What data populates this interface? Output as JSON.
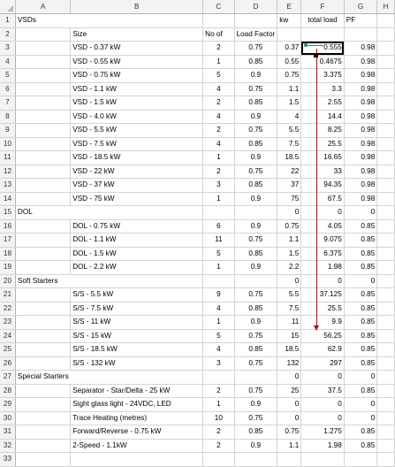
{
  "columns": [
    "A",
    "B",
    "C",
    "D",
    "E",
    "F",
    "G",
    "H"
  ],
  "rows": [
    {
      "n": "1",
      "a": "VSDs",
      "b": "",
      "c": "",
      "d": "",
      "e": "kw",
      "f": "total load",
      "g": "PF"
    },
    {
      "n": "2",
      "a": "",
      "b": "Size",
      "c": "No of",
      "d": "Load Factor",
      "e": "",
      "f": "",
      "g": ""
    },
    {
      "n": "3",
      "a": "",
      "b": "VSD - 0.37 kW",
      "c": "2",
      "d": "0.75",
      "e": "0.37",
      "f": "0.555",
      "g": "0.98"
    },
    {
      "n": "4",
      "a": "",
      "b": "VSD - 0.55 kW",
      "c": "1",
      "d": "0.85",
      "e": "0.55",
      "f": "0.4675",
      "g": "0.98"
    },
    {
      "n": "5",
      "a": "",
      "b": "VSD - 0.75 kW",
      "c": "5",
      "d": "0.9",
      "e": "0.75",
      "f": "3.375",
      "g": "0.98"
    },
    {
      "n": "6",
      "a": "",
      "b": "VSD - 1.1 kW",
      "c": "4",
      "d": "0.75",
      "e": "1.1",
      "f": "3.3",
      "g": "0.98"
    },
    {
      "n": "7",
      "a": "",
      "b": "VSD - 1.5 kW",
      "c": "2",
      "d": "0.85",
      "e": "1.5",
      "f": "2.55",
      "g": "0.98"
    },
    {
      "n": "8",
      "a": "",
      "b": "VSD - 4.0 kW",
      "c": "4",
      "d": "0.9",
      "e": "4",
      "f": "14.4",
      "g": "0.98"
    },
    {
      "n": "9",
      "a": "",
      "b": "VSD - 5.5 kW",
      "c": "2",
      "d": "0.75",
      "e": "5.5",
      "f": "8.25",
      "g": "0.98"
    },
    {
      "n": "10",
      "a": "",
      "b": "VSD - 7.5 kW",
      "c": "4",
      "d": "0.85",
      "e": "7.5",
      "f": "25.5",
      "g": "0.98"
    },
    {
      "n": "11",
      "a": "",
      "b": "VSD - 18.5 kW",
      "c": "1",
      "d": "0.9",
      "e": "18.5",
      "f": "16.65",
      "g": "0.98"
    },
    {
      "n": "12",
      "a": "",
      "b": "VSD - 22 kW",
      "c": "2",
      "d": "0.75",
      "e": "22",
      "f": "33",
      "g": "0.98"
    },
    {
      "n": "13",
      "a": "",
      "b": "VSD - 37 kW",
      "c": "3",
      "d": "0.85",
      "e": "37",
      "f": "94.35",
      "g": "0.98"
    },
    {
      "n": "14",
      "a": "",
      "b": "VSD - 75 kW",
      "c": "1",
      "d": "0.9",
      "e": "75",
      "f": "67.5",
      "g": "0.98"
    },
    {
      "n": "15",
      "a": "DOL",
      "b": "",
      "c": "",
      "d": "",
      "e": "0",
      "f": "0",
      "g": "0"
    },
    {
      "n": "16",
      "a": "",
      "b": "DOL - 0.75 kW",
      "c": "6",
      "d": "0.9",
      "e": "0.75",
      "f": "4.05",
      "g": "0.85"
    },
    {
      "n": "17",
      "a": "",
      "b": "DOL - 1.1 kW",
      "c": "11",
      "d": "0.75",
      "e": "1.1",
      "f": "9.075",
      "g": "0.85"
    },
    {
      "n": "18",
      "a": "",
      "b": "DOL - 1.5 kW",
      "c": "5",
      "d": "0.85",
      "e": "1.5",
      "f": "6.375",
      "g": "0.85"
    },
    {
      "n": "19",
      "a": "",
      "b": "DOL - 2.2 kW",
      "c": "1",
      "d": "0.9",
      "e": "2.2",
      "f": "1.98",
      "g": "0.85"
    },
    {
      "n": "20",
      "a": "Soft Starters",
      "b": "",
      "c": "",
      "d": "",
      "e": "0",
      "f": "0",
      "g": "0"
    },
    {
      "n": "21",
      "a": "",
      "b": "S/S - 5.5 kW",
      "c": "9",
      "d": "0.75",
      "e": "5.5",
      "f": "37.125",
      "g": "0.85"
    },
    {
      "n": "22",
      "a": "",
      "b": "S/S - 7.5 kW",
      "c": "4",
      "d": "0.85",
      "e": "7.5",
      "f": "25.5",
      "g": "0.85"
    },
    {
      "n": "23",
      "a": "",
      "b": "S/S - 11 kW",
      "c": "1",
      "d": "0.9",
      "e": "11",
      "f": "9.9",
      "g": "0.85"
    },
    {
      "n": "24",
      "a": "",
      "b": "S/S - 15 kW",
      "c": "5",
      "d": "0.75",
      "e": "15",
      "f": "56.25",
      "g": "0.85"
    },
    {
      "n": "25",
      "a": "",
      "b": "S/S - 18.5 kW",
      "c": "4",
      "d": "0.85",
      "e": "18.5",
      "f": "62.9",
      "g": "0.85"
    },
    {
      "n": "26",
      "a": "",
      "b": "S/S - 132 kW",
      "c": "3",
      "d": "0.75",
      "e": "132",
      "f": "297",
      "g": "0.85"
    },
    {
      "n": "27",
      "a": "Special Starters",
      "b": "",
      "c": "",
      "d": "",
      "e": "0",
      "f": "0",
      "g": "0"
    },
    {
      "n": "28",
      "a": "",
      "b": "Separator - Star/Delta - 25 kW",
      "c": "2",
      "d": "0.75",
      "e": "25",
      "f": "37.5",
      "g": "0.85"
    },
    {
      "n": "29",
      "a": "",
      "b": "Sight glass light - 24VDC, LED",
      "c": "1",
      "d": "0.9",
      "e": "0",
      "f": "0",
      "g": "0"
    },
    {
      "n": "30",
      "a": "",
      "b": "Trace Heating (metres)",
      "c": "10",
      "d": "0.75",
      "e": "0",
      "f": "0",
      "g": "0"
    },
    {
      "n": "31",
      "a": "",
      "b": "Forward/Reverse - 0.75 kW",
      "c": "2",
      "d": "0.85",
      "e": "0.75",
      "f": "1.275",
      "g": "0.85"
    },
    {
      "n": "32",
      "a": "",
      "b": "2-Speed - 1.1kW",
      "c": "2",
      "d": "0.9",
      "e": "1.1",
      "f": "1.98",
      "g": "0.85"
    },
    {
      "n": "33",
      "a": "",
      "b": "",
      "c": "",
      "d": "",
      "e": "",
      "f": "",
      "g": ""
    }
  ],
  "selected_cell": "F3",
  "colors": {
    "header_bg": "#f3f3f3",
    "gridline": "#d4d4d4",
    "trace_arrow": "#c00000",
    "trace_dot": "#2e8b57"
  }
}
